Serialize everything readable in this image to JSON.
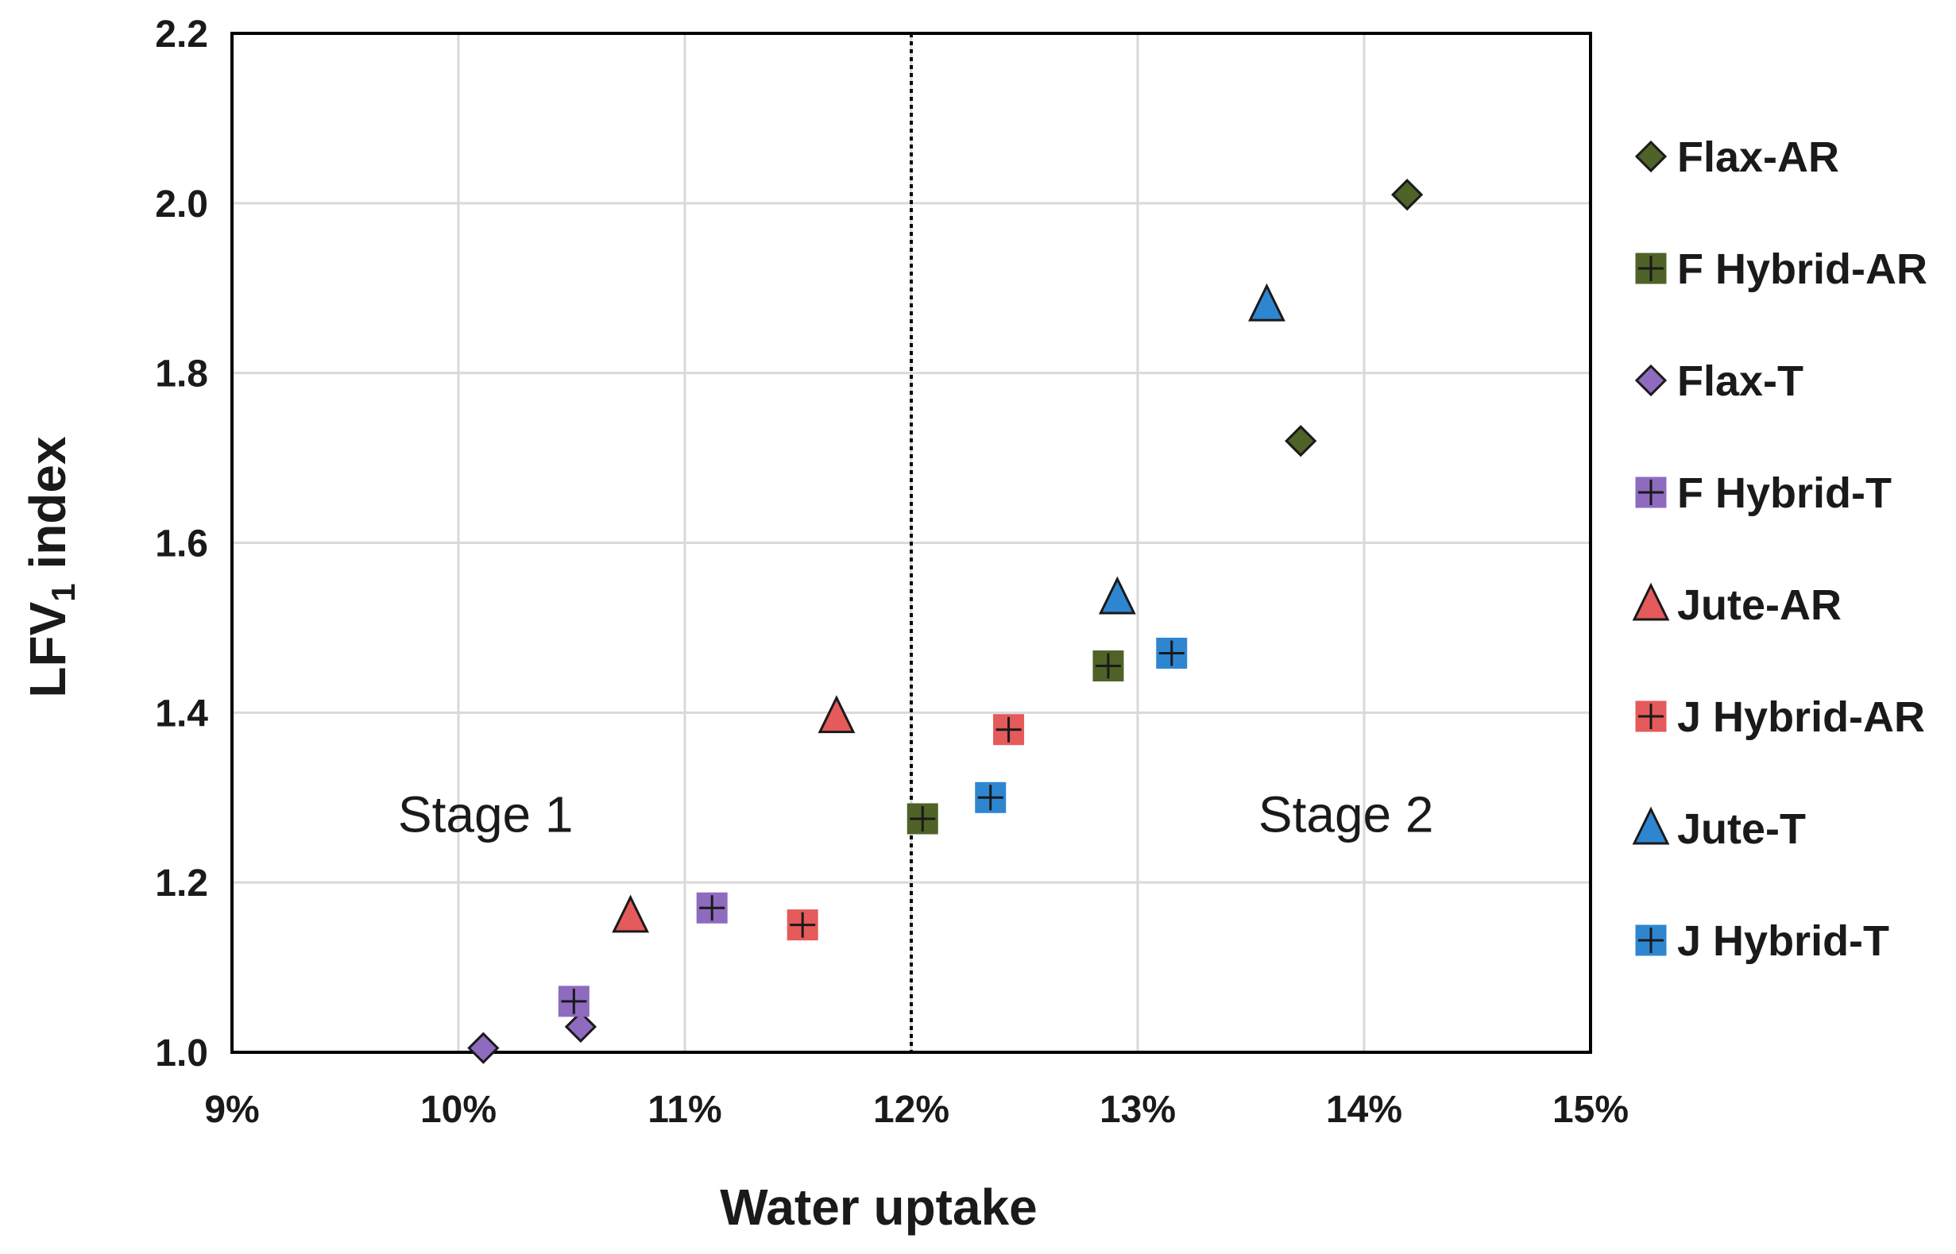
{
  "chart_data": {
    "type": "scatter",
    "title": "",
    "xlabel": "Water uptake",
    "ylabel_main": "LFV",
    "ylabel_sub": "1",
    "ylabel_rest": " index",
    "xlim": [
      0.09,
      0.15
    ],
    "ylim": [
      1.0,
      2.2
    ],
    "xticks": [
      0.09,
      0.1,
      0.11,
      0.12,
      0.13,
      0.14,
      0.15
    ],
    "xtick_labels": [
      "9%",
      "10%",
      "11%",
      "12%",
      "13%",
      "14%",
      "15%"
    ],
    "yticks": [
      1.0,
      1.2,
      1.4,
      1.6,
      1.8,
      2.0,
      2.2
    ],
    "ytick_labels": [
      "1.0",
      "1.2",
      "1.4",
      "1.6",
      "1.8",
      "2.0",
      "2.2"
    ],
    "grid": true,
    "legend_position": "right",
    "divider_x": 0.12,
    "annotations": [
      {
        "text": "Stage 1",
        "x": 0.1012,
        "y": 1.28
      },
      {
        "text": "Stage 2",
        "x": 0.1392,
        "y": 1.28
      }
    ],
    "series": [
      {
        "name": "Flax-AR",
        "marker": "diamond",
        "color": "#4f6228",
        "points": [
          [
            0.1419,
            2.01
          ],
          [
            0.1372,
            1.72
          ]
        ]
      },
      {
        "name": "F Hybrid-AR",
        "marker": "square-plus",
        "color": "#4f6228",
        "points": [
          [
            0.1205,
            1.275
          ],
          [
            0.1287,
            1.455
          ]
        ]
      },
      {
        "name": "Flax-T",
        "marker": "diamond",
        "color": "#8e6bbf",
        "points": [
          [
            0.1011,
            1.005
          ],
          [
            0.1054,
            1.03
          ]
        ]
      },
      {
        "name": "F Hybrid-T",
        "marker": "square-plus",
        "color": "#8e6bbf",
        "points": [
          [
            0.1051,
            1.06
          ],
          [
            0.1112,
            1.17
          ]
        ]
      },
      {
        "name": "Jute-AR",
        "marker": "triangle",
        "color": "#e55a5a",
        "points": [
          [
            0.1076,
            1.16
          ],
          [
            0.1167,
            1.395
          ]
        ]
      },
      {
        "name": "J Hybrid-AR",
        "marker": "square-plus",
        "color": "#e55a5a",
        "points": [
          [
            0.1152,
            1.15
          ],
          [
            0.1243,
            1.38
          ]
        ]
      },
      {
        "name": "Jute-T",
        "marker": "triangle",
        "color": "#2e86d1",
        "points": [
          [
            0.1291,
            1.535
          ],
          [
            0.1357,
            1.88
          ]
        ]
      },
      {
        "name": "J Hybrid-T",
        "marker": "square-plus",
        "color": "#2e86d1",
        "points": [
          [
            0.1235,
            1.3
          ],
          [
            0.1315,
            1.47
          ]
        ]
      }
    ]
  }
}
